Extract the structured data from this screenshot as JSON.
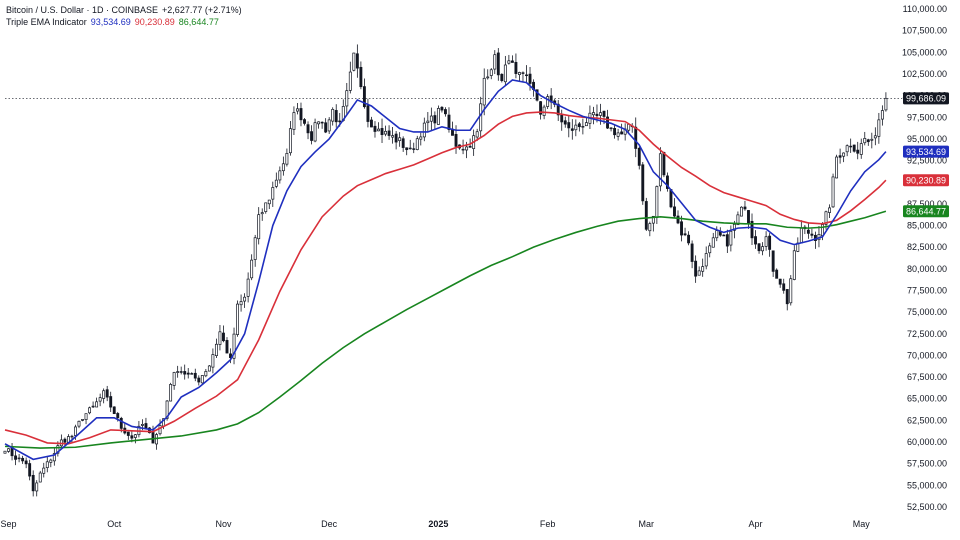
{
  "legend": {
    "symbol_line": "Bitcoin / U.S. Dollar · 1D · COINBASE",
    "change": "+2,627.77 (+2.71%)",
    "indicator_name": "Triple EMA Indicator",
    "ema_fast_value": "93,534.69",
    "ema_mid_value": "90,230.89",
    "ema_slow_value": "86,644.77"
  },
  "price_tags": [
    {
      "label": "99,686.09",
      "value": 99686.09,
      "bg": "#131722",
      "fg": "#ffffff"
    },
    {
      "label": "93,534.69",
      "value": 93534.69,
      "bg": "#1f2fbf",
      "fg": "#ffffff"
    },
    {
      "label": "90,230.89",
      "value": 90230.89,
      "bg": "#d9303a",
      "fg": "#ffffff"
    },
    {
      "label": "86,644.77",
      "value": 86644.77,
      "bg": "#18851f",
      "fg": "#ffffff"
    }
  ],
  "chart_data": {
    "type": "line",
    "xlabel": "",
    "ylabel": "",
    "ylim": [
      52500,
      110000
    ],
    "y_ticks": [
      "52,500.00",
      "55,000.00",
      "57,500.00",
      "60,000.00",
      "62,500.00",
      "65,000.00",
      "67,500.00",
      "70,000.00",
      "72,500.00",
      "75,000.00",
      "77,500.00",
      "80,000.00",
      "82,500.00",
      "85,000.00",
      "87,500.00",
      "90,000.00",
      "92,500.00",
      "95,000.00",
      "97,500.00",
      "100,000.00",
      "102,500.00",
      "105,000.00",
      "107,500.00",
      "110,000.00"
    ],
    "x_ticks": [
      {
        "label": "Sep",
        "day": 1,
        "bold": false
      },
      {
        "label": "Oct",
        "day": 31,
        "bold": false
      },
      {
        "label": "Nov",
        "day": 62,
        "bold": false
      },
      {
        "label": "Dec",
        "day": 92,
        "bold": false
      },
      {
        "label": "2025",
        "day": 123,
        "bold": true
      },
      {
        "label": "Feb",
        "day": 154,
        "bold": false
      },
      {
        "label": "Mar",
        "day": 182,
        "bold": false
      },
      {
        "label": "Apr",
        "day": 213,
        "bold": false
      },
      {
        "label": "May",
        "day": 243,
        "bold": false
      }
    ],
    "last_price_line": 99686.09,
    "colors": {
      "up": "#ffffff",
      "down": "#131722",
      "wick": "#131722",
      "ema_fast": "#1f2fbf",
      "ema_mid": "#d9303a",
      "ema_slow": "#18851f"
    },
    "close_anchors": [
      [
        0,
        59300
      ],
      [
        3,
        58200
      ],
      [
        6,
        57600
      ],
      [
        8,
        54200
      ],
      [
        10,
        56300
      ],
      [
        13,
        58100
      ],
      [
        16,
        60100
      ],
      [
        19,
        60700
      ],
      [
        22,
        62900
      ],
      [
        25,
        64000
      ],
      [
        28,
        65600
      ],
      [
        31,
        63400
      ],
      [
        33,
        61700
      ],
      [
        36,
        60500
      ],
      [
        39,
        62000
      ],
      [
        42,
        60200
      ],
      [
        45,
        62700
      ],
      [
        47,
        66900
      ],
      [
        49,
        68500
      ],
      [
        52,
        67700
      ],
      [
        55,
        67200
      ],
      [
        58,
        68900
      ],
      [
        61,
        72700
      ],
      [
        64,
        69400
      ],
      [
        66,
        75600
      ],
      [
        68,
        76600
      ],
      [
        70,
        81000
      ],
      [
        72,
        85800
      ],
      [
        75,
        88200
      ],
      [
        78,
        91500
      ],
      [
        80,
        93000
      ],
      [
        82,
        98500
      ],
      [
        84,
        97700
      ],
      [
        87,
        95300
      ],
      [
        89,
        97300
      ],
      [
        91,
        96200
      ],
      [
        93,
        98300
      ],
      [
        95,
        96500
      ],
      [
        97,
        100100
      ],
      [
        99,
        104400
      ],
      [
        101,
        101300
      ],
      [
        103,
        97300
      ],
      [
        106,
        96000
      ],
      [
        109,
        95400
      ],
      [
        112,
        94700
      ],
      [
        115,
        93500
      ],
      [
        118,
        95800
      ],
      [
        120,
        96900
      ],
      [
        122,
        97400
      ],
      [
        124,
        98700
      ],
      [
        126,
        96000
      ],
      [
        128,
        94400
      ],
      [
        131,
        94000
      ],
      [
        134,
        95600
      ],
      [
        136,
        102000
      ],
      [
        139,
        104200
      ],
      [
        141,
        101500
      ],
      [
        143,
        104600
      ],
      [
        145,
        102100
      ],
      [
        148,
        102000
      ],
      [
        150,
        101000
      ],
      [
        152,
        97400
      ],
      [
        154,
        100200
      ],
      [
        157,
        97700
      ],
      [
        160,
        96000
      ],
      [
        163,
        96500
      ],
      [
        166,
        97400
      ],
      [
        169,
        97600
      ],
      [
        172,
        96100
      ],
      [
        175,
        95500
      ],
      [
        178,
        96500
      ],
      [
        180,
        92000
      ],
      [
        182,
        84400
      ],
      [
        184,
        86000
      ],
      [
        186,
        93000
      ],
      [
        188,
        89000
      ],
      [
        190,
        86300
      ],
      [
        192,
        84200
      ],
      [
        194,
        83200
      ],
      [
        196,
        79000
      ],
      [
        199,
        81500
      ],
      [
        202,
        84000
      ],
      [
        205,
        83100
      ],
      [
        208,
        86000
      ],
      [
        210,
        87400
      ],
      [
        212,
        84000
      ],
      [
        214,
        82500
      ],
      [
        216,
        83600
      ],
      [
        218,
        80000
      ],
      [
        220,
        78500
      ],
      [
        222,
        76200
      ],
      [
        224,
        81600
      ],
      [
        226,
        84500
      ],
      [
        228,
        84200
      ],
      [
        230,
        83700
      ],
      [
        232,
        84800
      ],
      [
        234,
        87400
      ],
      [
        236,
        92900
      ],
      [
        238,
        93700
      ],
      [
        240,
        94500
      ],
      [
        242,
        93600
      ],
      [
        244,
        95000
      ],
      [
        246,
        94400
      ],
      [
        248,
        97300
      ],
      [
        250,
        99686
      ]
    ],
    "ema_fast": [
      [
        0,
        59800
      ],
      [
        8,
        58000
      ],
      [
        14,
        58500
      ],
      [
        20,
        60600
      ],
      [
        26,
        62800
      ],
      [
        31,
        62800
      ],
      [
        36,
        61800
      ],
      [
        42,
        61400
      ],
      [
        46,
        62900
      ],
      [
        50,
        65200
      ],
      [
        55,
        66300
      ],
      [
        60,
        68000
      ],
      [
        64,
        69500
      ],
      [
        68,
        72500
      ],
      [
        72,
        78500
      ],
      [
        76,
        85000
      ],
      [
        80,
        89000
      ],
      [
        84,
        91800
      ],
      [
        88,
        93500
      ],
      [
        92,
        95000
      ],
      [
        96,
        97200
      ],
      [
        100,
        99500
      ],
      [
        104,
        98800
      ],
      [
        108,
        97500
      ],
      [
        112,
        96200
      ],
      [
        116,
        95800
      ],
      [
        120,
        95800
      ],
      [
        124,
        96400
      ],
      [
        128,
        96000
      ],
      [
        132,
        96000
      ],
      [
        136,
        98400
      ],
      [
        140,
        100500
      ],
      [
        144,
        101800
      ],
      [
        148,
        101500
      ],
      [
        152,
        100000
      ],
      [
        156,
        99100
      ],
      [
        160,
        98300
      ],
      [
        164,
        97600
      ],
      [
        168,
        97200
      ],
      [
        172,
        96800
      ],
      [
        176,
        96100
      ],
      [
        180,
        94300
      ],
      [
        184,
        91200
      ],
      [
        188,
        89600
      ],
      [
        192,
        87600
      ],
      [
        196,
        85600
      ],
      [
        200,
        84800
      ],
      [
        204,
        84200
      ],
      [
        208,
        84700
      ],
      [
        212,
        84800
      ],
      [
        216,
        84600
      ],
      [
        220,
        83300
      ],
      [
        224,
        82800
      ],
      [
        228,
        83200
      ],
      [
        232,
        83700
      ],
      [
        236,
        86200
      ],
      [
        240,
        89000
      ],
      [
        244,
        91200
      ],
      [
        248,
        92600
      ],
      [
        250,
        93535
      ]
    ],
    "ema_mid": [
      [
        0,
        61400
      ],
      [
        6,
        60800
      ],
      [
        12,
        59900
      ],
      [
        18,
        59800
      ],
      [
        24,
        60500
      ],
      [
        30,
        61400
      ],
      [
        36,
        61300
      ],
      [
        42,
        61200
      ],
      [
        48,
        62400
      ],
      [
        54,
        63900
      ],
      [
        60,
        65300
      ],
      [
        66,
        67200
      ],
      [
        72,
        71800
      ],
      [
        78,
        77400
      ],
      [
        84,
        82200
      ],
      [
        90,
        86000
      ],
      [
        96,
        88400
      ],
      [
        100,
        89600
      ],
      [
        104,
        90300
      ],
      [
        108,
        91000
      ],
      [
        112,
        91500
      ],
      [
        116,
        92000
      ],
      [
        120,
        92700
      ],
      [
        124,
        93400
      ],
      [
        128,
        94000
      ],
      [
        132,
        94400
      ],
      [
        136,
        95400
      ],
      [
        140,
        96700
      ],
      [
        144,
        97600
      ],
      [
        148,
        98000
      ],
      [
        152,
        98100
      ],
      [
        156,
        98000
      ],
      [
        160,
        97700
      ],
      [
        164,
        97500
      ],
      [
        168,
        97400
      ],
      [
        172,
        97200
      ],
      [
        176,
        97000
      ],
      [
        180,
        96000
      ],
      [
        184,
        94400
      ],
      [
        188,
        93000
      ],
      [
        192,
        91700
      ],
      [
        196,
        90700
      ],
      [
        200,
        89600
      ],
      [
        204,
        88800
      ],
      [
        208,
        88300
      ],
      [
        212,
        87800
      ],
      [
        216,
        87300
      ],
      [
        220,
        86300
      ],
      [
        224,
        85700
      ],
      [
        228,
        85300
      ],
      [
        232,
        85200
      ],
      [
        236,
        85600
      ],
      [
        240,
        86700
      ],
      [
        244,
        88000
      ],
      [
        248,
        89400
      ],
      [
        250,
        90231
      ]
    ],
    "ema_slow": [
      [
        0,
        59500
      ],
      [
        10,
        59300
      ],
      [
        20,
        59400
      ],
      [
        30,
        59900
      ],
      [
        40,
        60300
      ],
      [
        50,
        60700
      ],
      [
        60,
        61400
      ],
      [
        66,
        62100
      ],
      [
        72,
        63400
      ],
      [
        78,
        65200
      ],
      [
        84,
        67100
      ],
      [
        90,
        69100
      ],
      [
        96,
        70900
      ],
      [
        102,
        72500
      ],
      [
        108,
        73900
      ],
      [
        114,
        75300
      ],
      [
        120,
        76600
      ],
      [
        126,
        77900
      ],
      [
        132,
        79200
      ],
      [
        138,
        80400
      ],
      [
        144,
        81400
      ],
      [
        150,
        82500
      ],
      [
        156,
        83400
      ],
      [
        162,
        84200
      ],
      [
        168,
        84900
      ],
      [
        174,
        85500
      ],
      [
        180,
        85800
      ],
      [
        186,
        86000
      ],
      [
        192,
        85800
      ],
      [
        198,
        85500
      ],
      [
        204,
        85300
      ],
      [
        210,
        85200
      ],
      [
        216,
        85200
      ],
      [
        222,
        84800
      ],
      [
        228,
        84700
      ],
      [
        232,
        84800
      ],
      [
        236,
        85100
      ],
      [
        240,
        85500
      ],
      [
        244,
        85900
      ],
      [
        248,
        86400
      ],
      [
        250,
        86645
      ]
    ]
  }
}
